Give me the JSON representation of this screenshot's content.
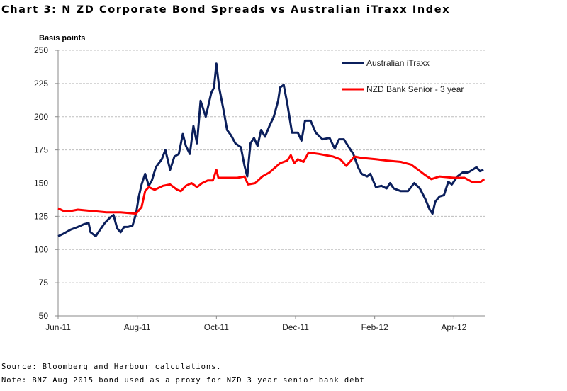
{
  "title": "Chart 3: N ZD  Corporate Bond Spreads vs Australian iTraxx Index",
  "source": "Source:  Bloomberg and Harbour calculations.",
  "note": "Note:  BNZ Aug 2015 bond used as a proxy for NZD 3 year senior bank debt",
  "chart_data": {
    "type": "line",
    "ylabel": "Basis points",
    "xlabel": "",
    "ylim": [
      50,
      250
    ],
    "yticks": [
      50,
      75,
      100,
      125,
      150,
      175,
      200,
      225,
      250
    ],
    "xlim": [
      0,
      10.8
    ],
    "x_units": "months since Jun-11",
    "xticks": [
      {
        "x": 0,
        "label": "Jun-11"
      },
      {
        "x": 2,
        "label": "Aug-11"
      },
      {
        "x": 4,
        "label": "Oct-11"
      },
      {
        "x": 6,
        "label": "Dec-11"
      },
      {
        "x": 8,
        "label": "Feb-12"
      },
      {
        "x": 10,
        "label": "Apr-12"
      }
    ],
    "grid": true,
    "legend_position": "top-right",
    "series": [
      {
        "name": "Australian iTraxx",
        "color": "#0b1f5c",
        "x": [
          0,
          0.14,
          0.32,
          0.5,
          0.65,
          0.77,
          0.82,
          0.95,
          1.04,
          1.18,
          1.31,
          1.4,
          1.49,
          1.58,
          1.67,
          1.76,
          1.88,
          1.97,
          2.04,
          2.11,
          2.2,
          2.29,
          2.37,
          2.47,
          2.62,
          2.71,
          2.83,
          2.94,
          3.05,
          3.15,
          3.23,
          3.33,
          3.42,
          3.51,
          3.6,
          3.73,
          3.87,
          3.94,
          4.0,
          4.07,
          4.18,
          4.27,
          4.37,
          4.48,
          4.62,
          4.71,
          4.78,
          4.86,
          4.95,
          5.04,
          5.13,
          5.23,
          5.34,
          5.45,
          5.56,
          5.61,
          5.7,
          5.79,
          5.91,
          6.06,
          6.15,
          6.24,
          6.38,
          6.51,
          6.68,
          6.86,
          6.99,
          7.1,
          7.22,
          7.35,
          7.46,
          7.58,
          7.67,
          7.81,
          7.89,
          8.03,
          8.17,
          8.3,
          8.39,
          8.48,
          8.66,
          8.84,
          9.0,
          9.14,
          9.28,
          9.39,
          9.46,
          9.53,
          9.64,
          9.75,
          9.86,
          9.95,
          10.09,
          10.22,
          10.36,
          10.47,
          10.57,
          10.66,
          10.75
        ],
        "values": [
          110,
          112,
          115,
          117,
          119,
          120,
          113,
          110,
          114,
          120,
          124,
          126,
          116,
          113,
          117,
          117,
          118,
          127,
          140,
          149,
          157,
          148,
          152,
          162,
          168,
          175,
          160,
          170,
          172,
          187,
          178,
          172,
          193,
          180,
          212,
          200,
          218,
          222,
          240,
          222,
          205,
          190,
          186,
          180,
          177,
          163,
          155,
          180,
          184,
          178,
          190,
          185,
          193,
          200,
          212,
          222,
          224,
          210,
          188,
          188,
          182,
          197,
          197,
          188,
          183,
          184,
          176,
          183,
          183,
          177,
          172,
          162,
          157,
          155,
          157,
          147,
          148,
          146,
          150,
          146,
          144,
          144,
          150,
          146,
          138,
          130,
          127,
          136,
          140,
          141,
          151,
          149,
          155,
          158,
          158,
          160,
          162,
          159,
          160
        ]
      },
      {
        "name": "NZD Bank Senior - 3 year",
        "color": "#ff0000",
        "x": [
          0,
          0.14,
          0.32,
          0.5,
          0.86,
          1.22,
          1.58,
          1.97,
          2.11,
          2.2,
          2.29,
          2.44,
          2.65,
          2.83,
          3.01,
          3.1,
          3.23,
          3.37,
          3.51,
          3.64,
          3.78,
          3.91,
          4.0,
          4.05,
          4.27,
          4.53,
          4.71,
          4.8,
          4.98,
          5.16,
          5.34,
          5.61,
          5.79,
          5.88,
          5.97,
          6.06,
          6.2,
          6.33,
          6.59,
          6.95,
          7.13,
          7.28,
          7.4,
          7.49,
          7.67,
          8.03,
          8.3,
          8.66,
          8.92,
          9.1,
          9.28,
          9.43,
          9.64,
          10.0,
          10.27,
          10.45,
          10.68,
          10.77
        ],
        "values": [
          131,
          129,
          129,
          130,
          129,
          128,
          128,
          127,
          132,
          144,
          147,
          145,
          148,
          149,
          145,
          144,
          148,
          150,
          147,
          150,
          152,
          152,
          160,
          154,
          154,
          154,
          155,
          149,
          150,
          155,
          158,
          165,
          167,
          171,
          165,
          168,
          166,
          173,
          172,
          170,
          168,
          163,
          167,
          170,
          169,
          168,
          167,
          166,
          164,
          160,
          156,
          153,
          155,
          154,
          154,
          151,
          151,
          153
        ]
      }
    ]
  }
}
